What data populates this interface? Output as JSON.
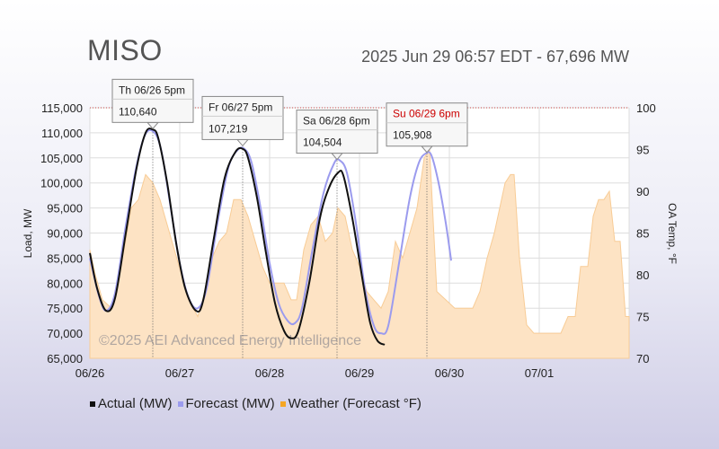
{
  "header": {
    "title": "MISO",
    "subtitle": "2025 Jun 29 06:57 EDT - 67,696 MW"
  },
  "watermark": "©2025 AEI Advanced Energy Intelligence",
  "legend": [
    {
      "label": "Actual (MW)",
      "color": "#111111"
    },
    {
      "label": "Forecast (MW)",
      "color": "#9b9bee"
    },
    {
      "label": "Weather (Forecast °F)",
      "color": "#f5a623"
    }
  ],
  "colors": {
    "actual": "#111111",
    "forecast": "#9b9bee",
    "weather_fill": "#fde3c4",
    "weather_stroke": "#f8cc96",
    "grid": "#dddddd",
    "callout_red": "#cc0000"
  },
  "chart_data": {
    "type": "line",
    "x_axis": {
      "ticks": [
        "06/26",
        "06/27",
        "06/28",
        "06/29",
        "06/30",
        "07/01"
      ],
      "range_days": [
        0,
        6
      ]
    },
    "y_left": {
      "label": "Load, MW",
      "ylim": [
        65000,
        115000
      ],
      "ticks": [
        "65,000",
        "70,000",
        "75,000",
        "80,000",
        "85,000",
        "90,000",
        "95,000",
        "100,000",
        "105,000",
        "110,000",
        "115,000"
      ]
    },
    "y_right": {
      "label": "OA Temp, °F",
      "ylim": [
        70,
        100
      ],
      "ticks": [
        "70",
        "75",
        "80",
        "85",
        "90",
        "95",
        "100"
      ]
    },
    "annotations": [
      {
        "label": "Th 06/26 5pm",
        "value": "110,640",
        "x": 0.7,
        "y": 110640,
        "highlight": false
      },
      {
        "label": "Fr 06/27 5pm",
        "value": "107,219",
        "x": 1.7,
        "y": 107219,
        "highlight": false
      },
      {
        "label": "Sa 06/28 6pm",
        "value": "104,504",
        "x": 2.75,
        "y": 104504,
        "highlight": false
      },
      {
        "label": "Su 06/29 6pm",
        "value": "105,908",
        "x": 3.75,
        "y": 105908,
        "highlight": true
      }
    ],
    "series": [
      {
        "name": "Actual (MW)",
        "axis": "left",
        "points": [
          [
            0.0,
            86000
          ],
          [
            0.08,
            79000
          ],
          [
            0.18,
            74500
          ],
          [
            0.28,
            77000
          ],
          [
            0.4,
            90000
          ],
          [
            0.52,
            103000
          ],
          [
            0.62,
            110000
          ],
          [
            0.7,
            110640
          ],
          [
            0.76,
            109000
          ],
          [
            0.86,
            100000
          ],
          [
            0.96,
            88000
          ],
          [
            1.06,
            79000
          ],
          [
            1.18,
            74500
          ],
          [
            1.26,
            76500
          ],
          [
            1.38,
            89000
          ],
          [
            1.5,
            101000
          ],
          [
            1.62,
            106200
          ],
          [
            1.7,
            106800
          ],
          [
            1.76,
            105000
          ],
          [
            1.86,
            97000
          ],
          [
            1.96,
            86000
          ],
          [
            2.06,
            76000
          ],
          [
            2.16,
            70500
          ],
          [
            2.24,
            69000
          ],
          [
            2.32,
            70500
          ],
          [
            2.44,
            80000
          ],
          [
            2.56,
            93000
          ],
          [
            2.66,
            99000
          ],
          [
            2.76,
            102000
          ],
          [
            2.82,
            101500
          ],
          [
            2.92,
            93000
          ],
          [
            3.04,
            80000
          ],
          [
            3.12,
            72000
          ],
          [
            3.2,
            68500
          ],
          [
            3.28,
            67700
          ]
        ]
      },
      {
        "name": "Forecast (MW)",
        "axis": "left",
        "points": [
          [
            0.0,
            85000
          ],
          [
            0.1,
            77500
          ],
          [
            0.18,
            74500
          ],
          [
            0.28,
            78000
          ],
          [
            0.4,
            91500
          ],
          [
            0.52,
            103500
          ],
          [
            0.62,
            109800
          ],
          [
            0.72,
            110000
          ],
          [
            0.8,
            106000
          ],
          [
            0.9,
            95000
          ],
          [
            1.0,
            84000
          ],
          [
            1.1,
            77000
          ],
          [
            1.2,
            75000
          ],
          [
            1.3,
            79000
          ],
          [
            1.42,
            92000
          ],
          [
            1.54,
            103000
          ],
          [
            1.64,
            106500
          ],
          [
            1.72,
            106800
          ],
          [
            1.8,
            104000
          ],
          [
            1.9,
            95000
          ],
          [
            2.0,
            84000
          ],
          [
            2.1,
            76000
          ],
          [
            2.2,
            72500
          ],
          [
            2.28,
            72000
          ],
          [
            2.36,
            75000
          ],
          [
            2.48,
            87000
          ],
          [
            2.6,
            98000
          ],
          [
            2.72,
            104000
          ],
          [
            2.78,
            104500
          ],
          [
            2.86,
            102000
          ],
          [
            2.96,
            92000
          ],
          [
            3.06,
            79000
          ],
          [
            3.16,
            71500
          ],
          [
            3.24,
            70000
          ],
          [
            3.32,
            71500
          ],
          [
            3.44,
            84000
          ],
          [
            3.56,
            97000
          ],
          [
            3.66,
            104000
          ],
          [
            3.74,
            105908
          ],
          [
            3.8,
            105500
          ],
          [
            3.88,
            100000
          ],
          [
            3.96,
            92000
          ],
          [
            4.02,
            84500
          ]
        ]
      },
      {
        "name": "Weather (Forecast °F)",
        "axis": "right",
        "points": [
          [
            0.0,
            83
          ],
          [
            0.06,
            80
          ],
          [
            0.14,
            77
          ],
          [
            0.24,
            76
          ],
          [
            0.3,
            79
          ],
          [
            0.38,
            83
          ],
          [
            0.46,
            88
          ],
          [
            0.54,
            89
          ],
          [
            0.62,
            92
          ],
          [
            0.7,
            91
          ],
          [
            0.78,
            89
          ],
          [
            0.86,
            86
          ],
          [
            0.94,
            83
          ],
          [
            1.02,
            80
          ],
          [
            1.1,
            77
          ],
          [
            1.2,
            75
          ],
          [
            1.28,
            78
          ],
          [
            1.36,
            82
          ],
          [
            1.44,
            84
          ],
          [
            1.52,
            85
          ],
          [
            1.6,
            89
          ],
          [
            1.68,
            89
          ],
          [
            1.76,
            87
          ],
          [
            1.84,
            84
          ],
          [
            1.92,
            81
          ],
          [
            2.0,
            79
          ],
          [
            2.08,
            79
          ],
          [
            2.16,
            79
          ],
          [
            2.24,
            77
          ],
          [
            2.3,
            77
          ],
          [
            2.38,
            83
          ],
          [
            2.46,
            86
          ],
          [
            2.54,
            87
          ],
          [
            2.62,
            84
          ],
          [
            2.7,
            85
          ],
          [
            2.76,
            88
          ],
          [
            2.84,
            87
          ],
          [
            2.92,
            83
          ],
          [
            3.0,
            81
          ],
          [
            3.08,
            78
          ],
          [
            3.16,
            77
          ],
          [
            3.24,
            76
          ],
          [
            3.32,
            78
          ],
          [
            3.4,
            84
          ],
          [
            3.48,
            82
          ],
          [
            3.56,
            85
          ],
          [
            3.64,
            88
          ],
          [
            3.72,
            94
          ],
          [
            3.78,
            95
          ],
          [
            3.86,
            78
          ],
          [
            3.96,
            77
          ],
          [
            4.06,
            76
          ],
          [
            4.16,
            76
          ],
          [
            4.26,
            76
          ],
          [
            4.34,
            78
          ],
          [
            4.42,
            82
          ],
          [
            4.5,
            85
          ],
          [
            4.56,
            88
          ],
          [
            4.62,
            91
          ],
          [
            4.68,
            92
          ],
          [
            4.72,
            92
          ],
          [
            4.78,
            82
          ],
          [
            4.86,
            74
          ],
          [
            4.94,
            73
          ],
          [
            5.0,
            73
          ],
          [
            5.08,
            73
          ],
          [
            5.16,
            73
          ],
          [
            5.24,
            73
          ],
          [
            5.32,
            75
          ],
          [
            5.4,
            75
          ],
          [
            5.46,
            81
          ],
          [
            5.54,
            81
          ],
          [
            5.6,
            87
          ],
          [
            5.66,
            89
          ],
          [
            5.72,
            89
          ],
          [
            5.78,
            90
          ],
          [
            5.84,
            84
          ],
          [
            5.9,
            84
          ],
          [
            5.96,
            75
          ],
          [
            6.0,
            75
          ]
        ]
      }
    ]
  }
}
